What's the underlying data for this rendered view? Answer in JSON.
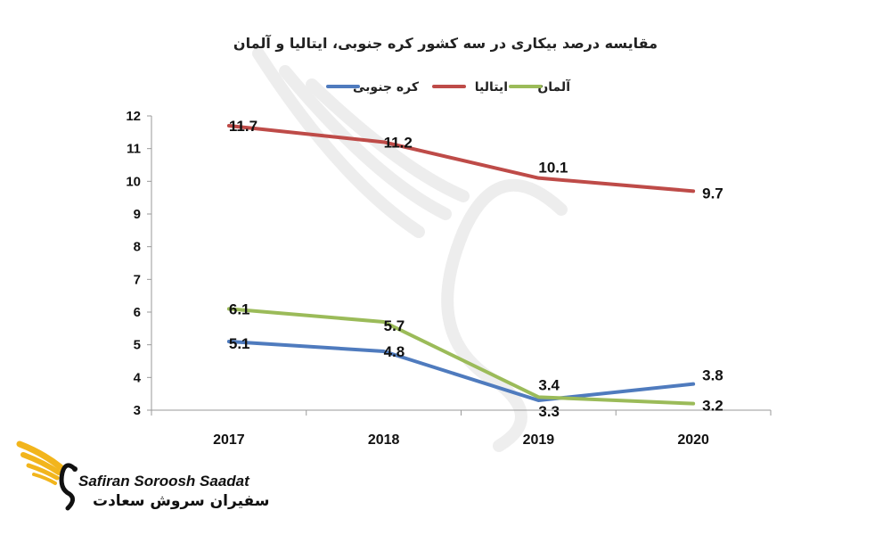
{
  "chart_data": {
    "type": "line",
    "title": "مقایسه درصد بیکاری در سه کشور کره جنوبی، ایتالیا و آلمان",
    "categories": [
      "2017",
      "2018",
      "2019",
      "2020"
    ],
    "ylim": [
      3,
      12
    ],
    "yticks": [
      "3",
      "4",
      "5",
      "6",
      "7",
      "8",
      "9",
      "10",
      "11",
      "12"
    ],
    "grid": false,
    "legend_position": "top",
    "series": [
      {
        "name": "کره جنوبی",
        "color": "#4F7BBE",
        "values": [
          5.1,
          4.8,
          3.3,
          3.8
        ],
        "labels": [
          "5.1",
          "4.8",
          "3.3",
          "3.8"
        ]
      },
      {
        "name": "ایتالیا",
        "color": "#BE4B48",
        "values": [
          11.7,
          11.2,
          10.1,
          9.7
        ],
        "labels": [
          "11.7",
          "11.2",
          "10.1",
          "9.7"
        ]
      },
      {
        "name": "آلمان",
        "color": "#9BBB59",
        "values": [
          6.1,
          5.7,
          3.4,
          3.2
        ],
        "labels": [
          "6.1",
          "5.7",
          "3.4",
          "3.2"
        ]
      }
    ]
  },
  "logo": {
    "text_en": "Safiran Soroosh Saadat",
    "text_fa": "سفیران سروش سعادت"
  }
}
